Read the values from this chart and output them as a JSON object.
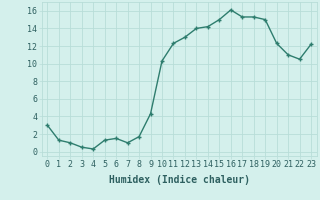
{
  "x": [
    0,
    1,
    2,
    3,
    4,
    5,
    6,
    7,
    8,
    9,
    10,
    11,
    12,
    13,
    14,
    15,
    16,
    17,
    18,
    19,
    20,
    21,
    22,
    23
  ],
  "y": [
    3.0,
    1.3,
    1.0,
    0.5,
    0.3,
    1.3,
    1.5,
    1.0,
    1.7,
    4.3,
    10.3,
    12.3,
    13.0,
    14.0,
    14.2,
    15.0,
    16.1,
    15.3,
    15.3,
    15.0,
    12.3,
    11.0,
    10.5,
    12.2
  ],
  "line_color": "#2e7d6e",
  "marker": "+",
  "marker_size": 3,
  "bg_color": "#d4f0ec",
  "grid_color": "#b8ddd8",
  "xlabel": "Humidex (Indice chaleur)",
  "xlim": [
    -0.5,
    23.5
  ],
  "ylim": [
    -0.5,
    17
  ],
  "yticks": [
    0,
    2,
    4,
    6,
    8,
    10,
    12,
    14,
    16
  ],
  "xticks": [
    0,
    1,
    2,
    3,
    4,
    5,
    6,
    7,
    8,
    9,
    10,
    11,
    12,
    13,
    14,
    15,
    16,
    17,
    18,
    19,
    20,
    21,
    22,
    23
  ],
  "tick_label_color": "#2e6060",
  "xlabel_fontsize": 7,
  "tick_fontsize": 6,
  "line_width": 1.0
}
